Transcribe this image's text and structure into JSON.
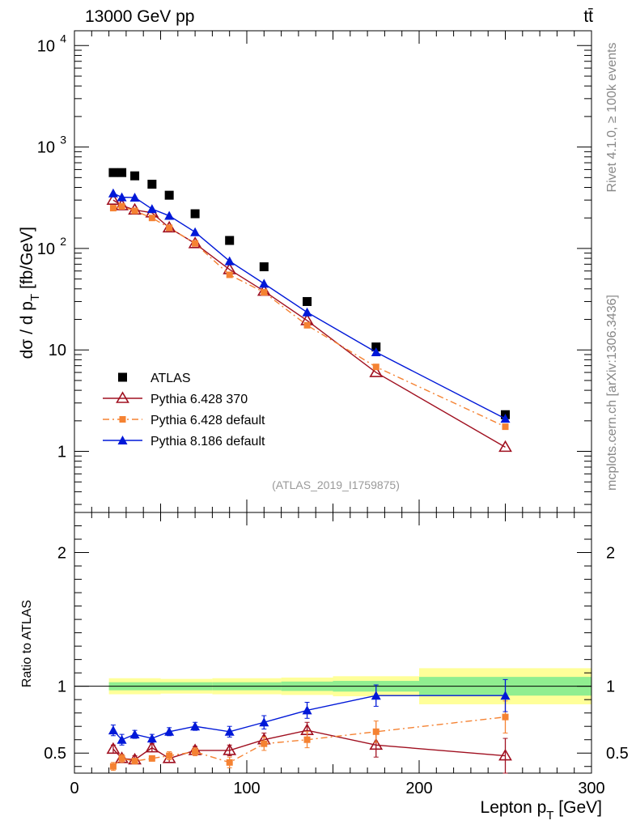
{
  "header": {
    "process": "13000 GeV pp",
    "final_state": "tt̄",
    "analysis_id": "(ATLAS_2019_I1759875)",
    "rivet_label": "Rivet 4.1.0, ≥ 100k events",
    "mcplots_label": "mcplots.cern.ch [arXiv:1306.3436]"
  },
  "colors": {
    "atlas": "#000000",
    "p6_370": "#a01020",
    "p6_default": "#f58232",
    "p8_default": "#0018d8",
    "band_inner": "#90ee90",
    "band_outer": "#ffff99"
  },
  "chart_data": [
    {
      "type": "scatter",
      "role": "main",
      "title": "",
      "xlabel": "Lepton p_T [GeV]",
      "ylabel": "dσ / d p_T [fb/GeV]",
      "yscale": "log",
      "xlim": [
        0,
        300
      ],
      "ylim": [
        0.25,
        14000
      ],
      "y_tick_labels": [
        "1",
        "10",
        "10^2",
        "10^3",
        "10^4"
      ],
      "legend": "bottom-left",
      "x": [
        22.5,
        27.5,
        35,
        45,
        55,
        70,
        90,
        110,
        135,
        175,
        250
      ],
      "series": [
        {
          "name": "ATLAS",
          "marker": "square",
          "line": "none",
          "values": [
            560,
            560,
            520,
            430,
            335,
            220,
            120,
            66,
            30,
            10.7,
            2.3
          ]
        },
        {
          "name": "Pythia 6.428 370",
          "marker": "open-triangle",
          "line": "solid",
          "values": [
            300,
            265,
            240,
            225,
            160,
            112,
            62,
            38,
            19.5,
            6.0,
            1.1
          ]
        },
        {
          "name": "Pythia 6.428 default",
          "marker": "square-small",
          "line": "dashdot",
          "values": [
            250,
            260,
            235,
            200,
            160,
            112,
            55,
            37,
            17.5,
            6.8,
            1.75
          ]
        },
        {
          "name": "Pythia 8.186 default",
          "marker": "filled-triangle",
          "line": "solid",
          "values": [
            350,
            320,
            318,
            245,
            210,
            145,
            75,
            45,
            23.5,
            9.5,
            2.1
          ]
        }
      ]
    },
    {
      "type": "line",
      "role": "ratio",
      "xlabel": "Lepton p_T [GeV]",
      "ylabel": "Ratio to ATLAS",
      "xlim": [
        0,
        300
      ],
      "ylim": [
        0.35,
        2.3
      ],
      "x_tick_labels": [
        "0",
        "100",
        "200",
        "300"
      ],
      "y_tick_labels": [
        "0.5",
        "1",
        "2"
      ],
      "x": [
        22.5,
        27.5,
        35,
        45,
        55,
        70,
        90,
        110,
        135,
        175,
        250
      ],
      "uncertainty_bands": [
        {
          "x_from": 20,
          "x_to": 50,
          "inner": [
            0.97,
            1.03
          ],
          "outer": [
            0.94,
            1.06
          ]
        },
        {
          "x_from": 50,
          "x_to": 80,
          "inner": [
            0.97,
            1.03
          ],
          "outer": [
            0.945,
            1.055
          ]
        },
        {
          "x_from": 80,
          "x_to": 120,
          "inner": [
            0.97,
            1.03
          ],
          "outer": [
            0.94,
            1.06
          ]
        },
        {
          "x_from": 120,
          "x_to": 150,
          "inner": [
            0.965,
            1.035
          ],
          "outer": [
            0.935,
            1.065
          ]
        },
        {
          "x_from": 150,
          "x_to": 200,
          "inner": [
            0.96,
            1.04
          ],
          "outer": [
            0.925,
            1.075
          ]
        },
        {
          "x_from": 200,
          "x_to": 300,
          "inner": [
            0.93,
            1.07
          ],
          "outer": [
            0.865,
            1.135
          ]
        }
      ],
      "series": [
        {
          "name": "Pythia 6.428 370",
          "values": [
            0.53,
            0.46,
            0.45,
            0.54,
            0.46,
            0.52,
            0.52,
            0.6,
            0.67,
            0.56,
            0.48
          ],
          "errors": [
            0.03,
            0.03,
            0.03,
            0.03,
            0.03,
            0.03,
            0.04,
            0.05,
            0.06,
            0.09,
            0.13
          ]
        },
        {
          "name": "Pythia 6.428 default",
          "values": [
            0.4,
            0.46,
            0.44,
            0.46,
            0.48,
            0.51,
            0.43,
            0.57,
            0.6,
            0.66,
            0.77
          ],
          "errors": [
            0.03,
            0.03,
            0.02,
            0.02,
            0.03,
            0.03,
            0.04,
            0.05,
            0.06,
            0.08,
            0.12
          ]
        },
        {
          "name": "Pythia 8.186 default",
          "values": [
            0.67,
            0.6,
            0.64,
            0.61,
            0.66,
            0.7,
            0.66,
            0.73,
            0.82,
            0.93,
            0.93
          ],
          "errors": [
            0.04,
            0.04,
            0.03,
            0.03,
            0.03,
            0.03,
            0.04,
            0.05,
            0.06,
            0.08,
            0.12
          ]
        }
      ]
    }
  ]
}
